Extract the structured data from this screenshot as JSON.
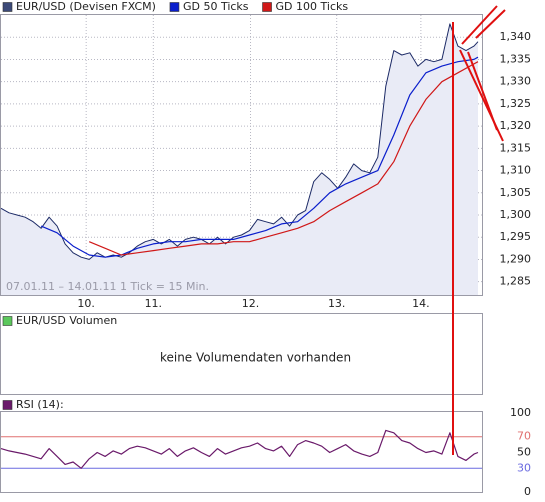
{
  "chart_data": [
    {
      "type": "line",
      "subtitle": "07.01.11 – 14.01.11   1 Tick = 15 Min.",
      "xlim": [
        0,
        480
      ],
      "xticks": [
        {
          "value": 85,
          "label": "10."
        },
        {
          "value": 152,
          "label": "11."
        },
        {
          "value": 249,
          "label": "12."
        },
        {
          "value": 335,
          "label": "13."
        },
        {
          "value": 419,
          "label": "14."
        }
      ],
      "ylim": [
        1.282,
        1.345
      ],
      "yticks": [
        {
          "value": 1.285,
          "label": "1,285"
        },
        {
          "value": 1.29,
          "label": "1,290"
        },
        {
          "value": 1.295,
          "label": "1,295"
        },
        {
          "value": 1.3,
          "label": "1,300"
        },
        {
          "value": 1.305,
          "label": "1,305"
        },
        {
          "value": 1.31,
          "label": "1,310"
        },
        {
          "value": 1.315,
          "label": "1,315"
        },
        {
          "value": 1.32,
          "label": "1,320"
        },
        {
          "value": 1.325,
          "label": "1,325"
        },
        {
          "value": 1.33,
          "label": "1,330"
        },
        {
          "value": 1.335,
          "label": "1,335"
        },
        {
          "value": 1.34,
          "label": "1,340"
        }
      ],
      "grid": true,
      "series": [
        {
          "name": "EUR/USD (Devisen FXCM)",
          "color": "#1c2a66",
          "legend_color": "#3c4a78",
          "fill": "#e9ebf6",
          "x": [
            0,
            8,
            16,
            24,
            32,
            40,
            48,
            56,
            64,
            72,
            80,
            88,
            96,
            104,
            112,
            120,
            128,
            136,
            144,
            152,
            160,
            168,
            176,
            184,
            192,
            200,
            208,
            216,
            224,
            232,
            240,
            248,
            256,
            264,
            272,
            280,
            288,
            296,
            304,
            312,
            320,
            328,
            336,
            344,
            352,
            360,
            368,
            376,
            384,
            392,
            400,
            408,
            416,
            424,
            432,
            440,
            448,
            456,
            464,
            472,
            476
          ],
          "values": [
            1.3015,
            1.3005,
            1.3,
            1.2995,
            1.2985,
            1.297,
            1.2995,
            1.2975,
            1.2935,
            1.2915,
            1.2905,
            1.29,
            1.2915,
            1.2905,
            1.291,
            1.2905,
            1.2915,
            1.293,
            1.294,
            1.2945,
            1.2935,
            1.2945,
            1.293,
            1.2945,
            1.295,
            1.2945,
            1.2935,
            1.295,
            1.2935,
            1.295,
            1.2955,
            1.2965,
            1.299,
            1.2985,
            1.298,
            1.2995,
            1.2975,
            1.3,
            1.301,
            1.3075,
            1.3095,
            1.308,
            1.306,
            1.3085,
            1.3115,
            1.31,
            1.3095,
            1.313,
            1.329,
            1.337,
            1.336,
            1.3365,
            1.3335,
            1.335,
            1.3345,
            1.335,
            1.343,
            1.338,
            1.337,
            1.338,
            1.339
          ]
        },
        {
          "name": "GD 50 Ticks",
          "color": "#0a1ecc",
          "x": [
            40,
            56,
            72,
            88,
            104,
            120,
            136,
            152,
            168,
            184,
            200,
            216,
            232,
            248,
            264,
            280,
            296,
            312,
            328,
            344,
            360,
            376,
            392,
            408,
            424,
            440,
            456,
            472,
            476
          ],
          "values": [
            1.2975,
            1.296,
            1.293,
            1.291,
            1.2905,
            1.291,
            1.2925,
            1.2935,
            1.294,
            1.294,
            1.2945,
            1.2945,
            1.2945,
            1.2955,
            1.2965,
            1.298,
            1.2985,
            1.3015,
            1.305,
            1.307,
            1.3085,
            1.31,
            1.318,
            1.327,
            1.332,
            1.3335,
            1.3345,
            1.335,
            1.3355
          ]
        },
        {
          "name": "GD 100 Ticks",
          "color": "#d01818",
          "x": [
            88,
            104,
            120,
            136,
            152,
            168,
            184,
            200,
            216,
            232,
            248,
            264,
            280,
            296,
            312,
            328,
            344,
            360,
            376,
            392,
            408,
            424,
            440,
            456,
            472,
            476
          ],
          "values": [
            1.294,
            1.2925,
            1.291,
            1.2915,
            1.292,
            1.2925,
            1.293,
            1.2935,
            1.2935,
            1.294,
            1.294,
            1.295,
            1.296,
            1.297,
            1.2985,
            1.301,
            1.303,
            1.305,
            1.307,
            1.312,
            1.32,
            1.326,
            1.33,
            1.332,
            1.334,
            1.3345
          ]
        }
      ]
    },
    {
      "type": "text",
      "title": "EUR/USD Volumen",
      "legend_color": "#5cc85c",
      "message": "keine Volumendaten vorhanden"
    },
    {
      "type": "line",
      "xlim": [
        0,
        480
      ],
      "ylim": [
        0,
        100
      ],
      "yticks": [
        0,
        30,
        50,
        70,
        100
      ],
      "reference_lines": [
        {
          "value": 70,
          "color": "#e07070"
        },
        {
          "value": 30,
          "color": "#6a6ae0"
        }
      ],
      "series": [
        {
          "name": "RSI (14):",
          "color": "#6a1a6a",
          "legend_color": "#6a1a6a",
          "x": [
            0,
            8,
            16,
            24,
            32,
            40,
            48,
            56,
            64,
            72,
            80,
            88,
            96,
            104,
            112,
            120,
            128,
            136,
            144,
            152,
            160,
            168,
            176,
            184,
            192,
            200,
            208,
            216,
            224,
            232,
            240,
            248,
            256,
            264,
            272,
            280,
            288,
            296,
            304,
            312,
            320,
            328,
            336,
            344,
            352,
            360,
            368,
            376,
            384,
            392,
            400,
            408,
            416,
            424,
            432,
            440,
            448,
            456,
            464,
            472,
            476
          ],
          "values": [
            55,
            52,
            50,
            48,
            45,
            42,
            55,
            45,
            35,
            38,
            30,
            42,
            50,
            45,
            52,
            48,
            55,
            58,
            56,
            52,
            48,
            55,
            45,
            52,
            56,
            50,
            45,
            55,
            48,
            52,
            56,
            58,
            62,
            55,
            52,
            58,
            45,
            60,
            65,
            62,
            58,
            50,
            55,
            60,
            52,
            48,
            45,
            50,
            78,
            75,
            65,
            62,
            55,
            50,
            52,
            48,
            75,
            45,
            40,
            48,
            50
          ]
        }
      ]
    }
  ]
}
